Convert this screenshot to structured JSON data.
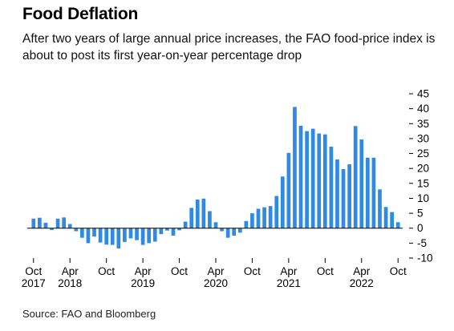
{
  "header": {
    "title": "Food Deflation",
    "subtitle": "After two years of large annual price increases, the FAO food-price index is about to post its first year-on-year percentage drop"
  },
  "footer": {
    "source": "Source: FAO and Bloomberg"
  },
  "colors": {
    "bar": "#2f8ae5",
    "zero_line": "#000000",
    "text": "#000000"
  },
  "chart_data": {
    "type": "bar",
    "title": "Food Deflation",
    "subtitle": "After two years of large annual price increases, the FAO food-price index is about to post its first year-on-year percentage drop",
    "xlabel": "",
    "ylabel": "",
    "ylim": [
      -10,
      45
    ],
    "y_axis_side": "right",
    "grid": false,
    "legend": "none",
    "yticks": [
      -10,
      -5,
      0,
      5,
      10,
      15,
      20,
      25,
      30,
      35,
      40,
      45
    ],
    "categories": [
      "2017-10",
      "2017-11",
      "2017-12",
      "2018-01",
      "2018-02",
      "2018-03",
      "2018-04",
      "2018-05",
      "2018-06",
      "2018-07",
      "2018-08",
      "2018-09",
      "2018-10",
      "2018-11",
      "2018-12",
      "2019-01",
      "2019-02",
      "2019-03",
      "2019-04",
      "2019-05",
      "2019-06",
      "2019-07",
      "2019-08",
      "2019-09",
      "2019-10",
      "2019-11",
      "2019-12",
      "2020-01",
      "2020-02",
      "2020-03",
      "2020-04",
      "2020-05",
      "2020-06",
      "2020-07",
      "2020-08",
      "2020-09",
      "2020-10",
      "2020-11",
      "2020-12",
      "2021-01",
      "2021-02",
      "2021-03",
      "2021-04",
      "2021-05",
      "2021-06",
      "2021-07",
      "2021-08",
      "2021-09",
      "2021-10",
      "2021-11",
      "2021-12",
      "2022-01",
      "2022-02",
      "2022-03",
      "2022-04",
      "2022-05",
      "2022-06",
      "2022-07",
      "2022-08",
      "2022-09",
      "2022-10"
    ],
    "values": [
      3.2,
      3.5,
      1.8,
      -0.6,
      3.2,
      3.6,
      1.4,
      -1.0,
      -3.2,
      -5.0,
      -2.8,
      -4.8,
      -5.5,
      -5.6,
      -6.8,
      -4.6,
      -3.4,
      -4.0,
      -5.6,
      -5.0,
      -4.5,
      -2.0,
      -0.8,
      -2.5,
      -0.7,
      2.2,
      6.8,
      9.6,
      9.9,
      5.7,
      2.0,
      -1.0,
      -3.2,
      -2.5,
      -1.5,
      2.4,
      5.0,
      6.5,
      7.0,
      7.4,
      10.8,
      17.3,
      25.2,
      40.6,
      34.3,
      32.5,
      33.3,
      31.7,
      31.4,
      27.3,
      23.0,
      19.8,
      21.4,
      34.2,
      29.7,
      23.6,
      23.6,
      13.0,
      7.1,
      5.4,
      2.0
    ],
    "x_tick_labels": [
      {
        "month": "2017-10",
        "label": "Oct",
        "year": "2017"
      },
      {
        "month": "2018-04",
        "label": "Apr",
        "year": "2018"
      },
      {
        "month": "2018-10",
        "label": "Oct",
        "year": ""
      },
      {
        "month": "2019-04",
        "label": "Apr",
        "year": "2019"
      },
      {
        "month": "2019-10",
        "label": "Oct",
        "year": ""
      },
      {
        "month": "2020-04",
        "label": "Apr",
        "year": "2020"
      },
      {
        "month": "2020-10",
        "label": "Oct",
        "year": ""
      },
      {
        "month": "2021-04",
        "label": "Apr",
        "year": "2021"
      },
      {
        "month": "2021-10",
        "label": "Oct",
        "year": ""
      },
      {
        "month": "2022-04",
        "label": "Apr",
        "year": "2022"
      },
      {
        "month": "2022-10",
        "label": "Oct",
        "year": ""
      }
    ]
  }
}
